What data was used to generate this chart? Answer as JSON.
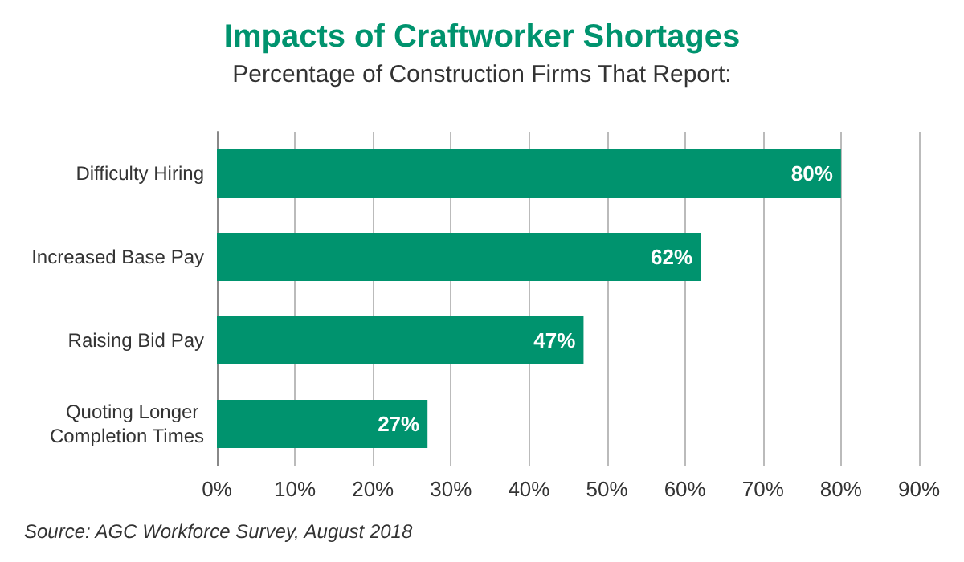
{
  "chart_data": {
    "type": "bar",
    "orientation": "horizontal",
    "title": "Impacts of Craftworker Shortages",
    "subtitle": "Percentage of Construction Firms That Report:",
    "categories": [
      "Difficulty Hiring",
      "Increased Base Pay",
      "Raising Bid Pay",
      "Quoting Longer Completion Times"
    ],
    "values": [
      80,
      62,
      47,
      27
    ],
    "color": "#00936e",
    "value_labels": [
      "80%",
      "62%",
      "47%",
      "27%"
    ],
    "xlim": [
      0,
      90
    ],
    "xticks": [
      {
        "value": 0,
        "label": "0%"
      },
      {
        "value": 10,
        "label": "10%"
      },
      {
        "value": 20,
        "label": "20%"
      },
      {
        "value": 30,
        "label": "30%"
      },
      {
        "value": 40,
        "label": "40%"
      },
      {
        "value": 50,
        "label": "50%"
      },
      {
        "value": 60,
        "label": "60%"
      },
      {
        "value": 70,
        "label": "70%"
      },
      {
        "value": 80,
        "label": "80%"
      },
      {
        "value": 90,
        "label": "90%"
      }
    ],
    "grid": "x",
    "annotations": [
      "Source: AGC Workforce Survey, August 2018"
    ]
  }
}
